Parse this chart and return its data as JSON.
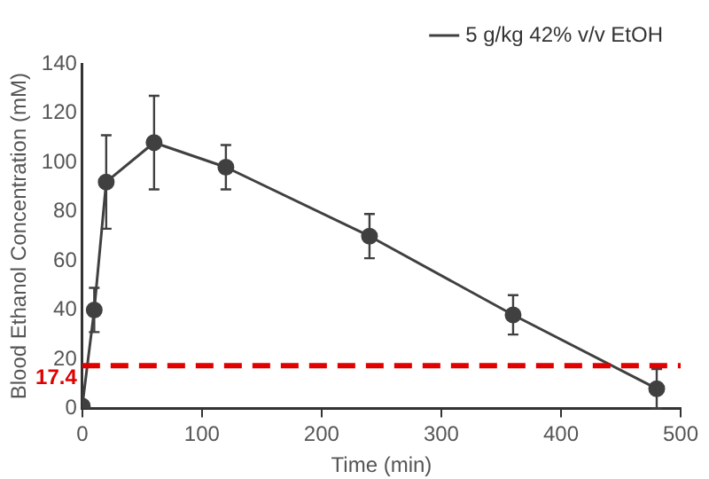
{
  "chart_data": {
    "type": "line",
    "xlabel": "Time (min)",
    "ylabel": "Blood Ethanol Concentration (mM)",
    "x": [
      0,
      10,
      20,
      60,
      120,
      240,
      360,
      480
    ],
    "series": [
      {
        "name": "5 g/kg 42% v/v EtOH",
        "color": "#404040",
        "values": [
          1,
          40,
          92,
          108,
          98,
          70,
          38,
          8
        ],
        "errors": [
          null,
          9,
          19,
          19,
          9,
          9,
          8,
          8
        ]
      }
    ],
    "xlim": [
      0,
      500
    ],
    "xticks": [
      0,
      100,
      200,
      300,
      400,
      500
    ],
    "ylim": [
      0,
      140
    ],
    "yticks": [
      0,
      20,
      40,
      60,
      80,
      100,
      120,
      140
    ],
    "ref_lines": [
      {
        "axis": "y",
        "value": 17.4,
        "label": "17.4",
        "color": "#e00000",
        "line_style": "dashed"
      }
    ],
    "grid": false,
    "legend": "top right",
    "marker": "circle",
    "line_style": "solid"
  }
}
